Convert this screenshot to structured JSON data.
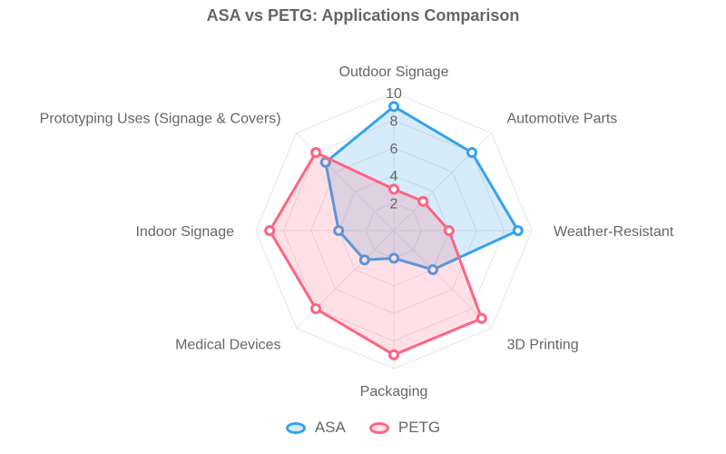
{
  "chart_data": {
    "type": "radar",
    "title": "ASA vs PETG: Applications Comparison",
    "categories": [
      "Outdoor Signage",
      "Automotive Parts",
      "Weather-Resistant",
      "3D Printing",
      "Packaging",
      "Medical Devices",
      "Indoor Signage",
      "Prototyping Uses (Signage & Covers)"
    ],
    "rlim": [
      0,
      10
    ],
    "ticks": [
      "2",
      "4",
      "6",
      "8",
      "10"
    ],
    "series": [
      {
        "name": "ASA",
        "values": [
          9,
          8,
          9,
          4,
          2,
          3,
          4,
          7
        ],
        "color": "#36a2eb",
        "fill": "rgba(54,162,235,0.2)"
      },
      {
        "name": "PETG",
        "values": [
          3,
          3,
          4,
          9,
          9,
          8,
          9,
          8
        ],
        "color": "#ff6384",
        "fill": "rgba(255,99,132,0.2)"
      }
    ],
    "legend_position": "bottom",
    "grid": true
  }
}
